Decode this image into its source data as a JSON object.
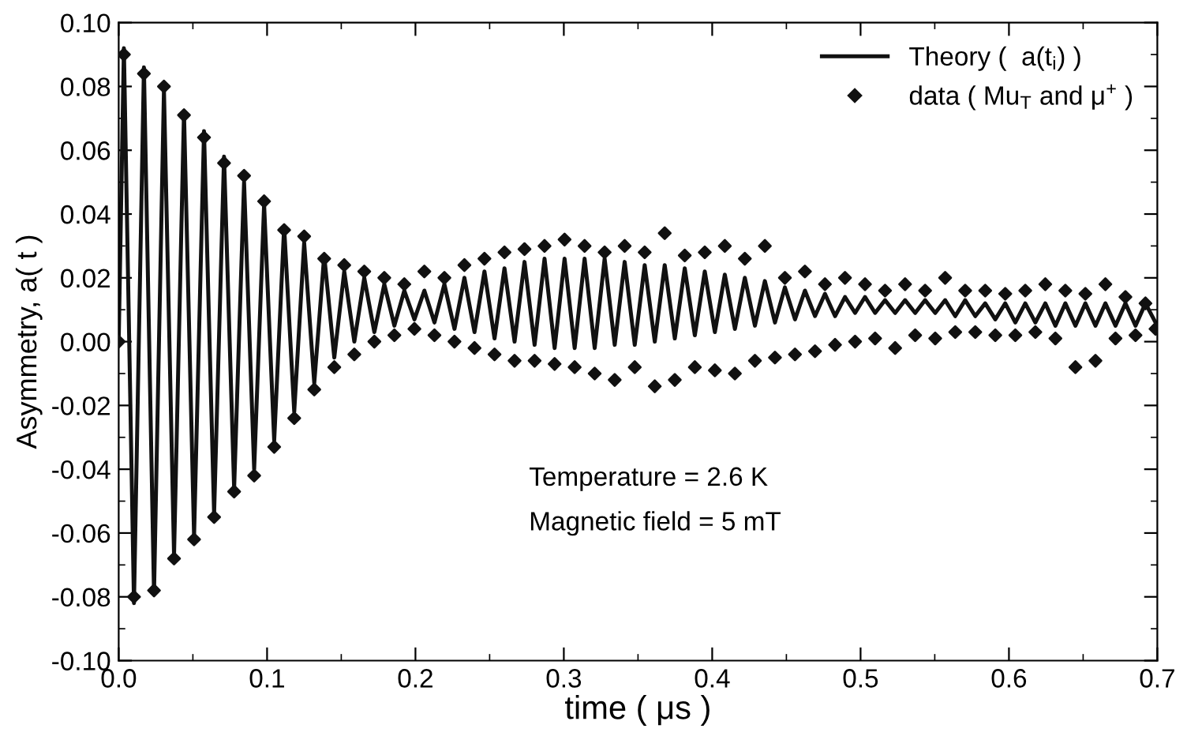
{
  "chart_data": {
    "type": "line",
    "xlabel": "time ( μs )",
    "ylabel": "Asymmetry, a( t )",
    "xlim": [
      0.0,
      0.7
    ],
    "xticks": [
      {
        "value": 0.0,
        "label": "0.0"
      },
      0.1,
      0.2,
      0.3,
      0.4,
      0.5,
      0.6,
      0.7
    ],
    "ylim": [
      -0.1,
      0.1
    ],
    "yticks": [
      {
        "value": -0.1,
        "label": "-0.10"
      },
      {
        "value": -0.08,
        "label": "-0.08"
      },
      {
        "value": -0.06,
        "label": "-0.06"
      },
      {
        "value": -0.04,
        "label": "-0.04"
      },
      {
        "value": -0.02,
        "label": "-0.02"
      },
      {
        "value": 0.0,
        "label": "0.00"
      },
      {
        "value": 0.02,
        "label": "0.02"
      },
      {
        "value": 0.04,
        "label": "0.04"
      },
      {
        "value": 0.06,
        "label": "0.06"
      },
      {
        "value": 0.08,
        "label": "0.08"
      },
      {
        "value": 0.1,
        "label": "0.10"
      }
    ],
    "grid": false,
    "legend": "top right",
    "annotations": [
      "Temperature = 2.6 K",
      "Magnetic field = 5 mT"
    ],
    "x": [
      0.0,
      0.0035,
      0.0103,
      0.017,
      0.0238,
      0.0305,
      0.0373,
      0.044,
      0.0508,
      0.0575,
      0.0643,
      0.071,
      0.0778,
      0.0845,
      0.0913,
      0.098,
      0.1048,
      0.1115,
      0.1183,
      0.125,
      0.1318,
      0.1385,
      0.1453,
      0.152,
      0.1588,
      0.1655,
      0.1723,
      0.179,
      0.1858,
      0.1925,
      0.1993,
      0.206,
      0.2128,
      0.2195,
      0.2263,
      0.233,
      0.2398,
      0.2465,
      0.2533,
      0.26,
      0.2668,
      0.2735,
      0.2803,
      0.287,
      0.2938,
      0.3005,
      0.3073,
      0.314,
      0.3208,
      0.3275,
      0.3343,
      0.341,
      0.3478,
      0.3545,
      0.3613,
      0.368,
      0.3748,
      0.3815,
      0.3883,
      0.395,
      0.4018,
      0.4085,
      0.4153,
      0.422,
      0.4288,
      0.4355,
      0.4423,
      0.449,
      0.4558,
      0.4625,
      0.4693,
      0.476,
      0.4828,
      0.4895,
      0.4963,
      0.503,
      0.5098,
      0.5165,
      0.5233,
      0.53,
      0.5368,
      0.5435,
      0.5503,
      0.557,
      0.5638,
      0.5705,
      0.5773,
      0.584,
      0.5908,
      0.5975,
      0.6043,
      0.611,
      0.6178,
      0.6245,
      0.6313,
      0.638,
      0.6448,
      0.6515,
      0.6583,
      0.665,
      0.6718,
      0.6785,
      0.6853,
      0.692,
      0.6988
    ],
    "series": [
      {
        "name": "Theory (  a(t$_{i}$) )",
        "color": "#111111",
        "line_style": "solid",
        "marker": "none",
        "values": [
          0.0,
          0.092,
          -0.082,
          0.086,
          -0.079,
          0.079,
          -0.067,
          0.072,
          -0.061,
          0.066,
          -0.054,
          0.058,
          -0.046,
          0.05,
          -0.04,
          0.043,
          -0.031,
          0.036,
          -0.022,
          0.031,
          -0.013,
          0.027,
          -0.005,
          0.022,
          0.0,
          0.02,
          0.003,
          0.018,
          0.005,
          0.016,
          0.007,
          0.016,
          0.006,
          0.018,
          0.004,
          0.02,
          0.003,
          0.022,
          0.001,
          0.023,
          0.0,
          0.025,
          -0.001,
          0.026,
          -0.002,
          0.026,
          -0.002,
          0.026,
          -0.002,
          0.026,
          -0.001,
          0.025,
          -0.001,
          0.024,
          0.0,
          0.024,
          0.001,
          0.023,
          0.002,
          0.022,
          0.003,
          0.021,
          0.004,
          0.02,
          0.005,
          0.019,
          0.006,
          0.017,
          0.007,
          0.016,
          0.008,
          0.015,
          0.008,
          0.014,
          0.009,
          0.014,
          0.009,
          0.013,
          0.009,
          0.013,
          0.009,
          0.013,
          0.009,
          0.013,
          0.008,
          0.013,
          0.008,
          0.012,
          0.007,
          0.012,
          0.006,
          0.012,
          0.006,
          0.012,
          0.005,
          0.012,
          0.005,
          0.012,
          0.005,
          0.012,
          0.005,
          0.012,
          0.005,
          0.012,
          0.006
        ]
      },
      {
        "name": "data ( Mu$_{T}$ and μ$^{+}$ )",
        "type": "scatter",
        "color": "#111111",
        "marker": "diamond",
        "values": [
          0.0,
          0.09,
          -0.08,
          0.084,
          -0.078,
          0.08,
          -0.068,
          0.071,
          -0.062,
          0.064,
          -0.055,
          0.056,
          -0.047,
          0.052,
          -0.042,
          0.044,
          -0.033,
          0.035,
          -0.024,
          0.033,
          -0.015,
          0.026,
          -0.008,
          0.024,
          -0.004,
          0.022,
          0.0,
          0.02,
          0.002,
          0.018,
          0.004,
          0.022,
          0.002,
          0.02,
          0.0,
          0.024,
          -0.002,
          0.026,
          -0.004,
          0.028,
          -0.006,
          0.029,
          -0.006,
          0.03,
          -0.007,
          0.032,
          -0.008,
          0.03,
          -0.01,
          0.028,
          -0.012,
          0.03,
          -0.008,
          0.028,
          -0.014,
          0.034,
          -0.012,
          0.027,
          -0.008,
          0.028,
          -0.009,
          0.03,
          -0.01,
          0.026,
          -0.006,
          0.03,
          -0.005,
          0.02,
          -0.004,
          0.022,
          -0.003,
          0.018,
          -0.001,
          0.02,
          0.0,
          0.018,
          0.001,
          0.016,
          -0.002,
          0.018,
          0.002,
          0.016,
          0.001,
          0.02,
          0.003,
          0.016,
          0.003,
          0.016,
          0.002,
          0.015,
          0.002,
          0.016,
          0.003,
          0.018,
          0.001,
          0.016,
          -0.008,
          0.015,
          -0.006,
          0.018,
          0.001,
          0.014,
          0.002,
          0.012,
          0.004
        ]
      }
    ]
  }
}
